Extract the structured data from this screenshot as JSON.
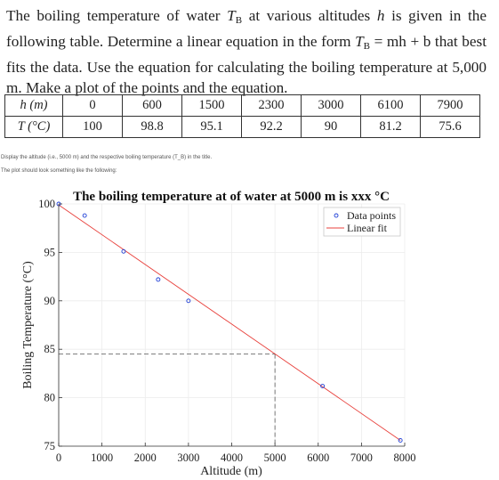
{
  "problem": {
    "text_part1": "The boiling temperature of water ",
    "symbol_T": "T",
    "subscript_B": "B",
    "text_part2": " at various altitudes ",
    "symbol_h": "h",
    "text_part3": " is given in the following table. Determine a linear equation in the form ",
    "equation_rhs": " = mh + b",
    "text_part4": " that best fits the data. Use the equation for calculating the boiling temperature at 5,000 m. Make a plot of the points and the equation."
  },
  "table": {
    "row_headers": [
      "h (m)",
      "T (°C)"
    ],
    "altitudes": [
      "0",
      "600",
      "1500",
      "2300",
      "3000",
      "6100",
      "7900"
    ],
    "temperatures": [
      "100",
      "98.8",
      "95.1",
      "92.2",
      "90",
      "81.2",
      "75.6"
    ]
  },
  "notes": {
    "note1": "Display the altitude (i.e., 5000 m) and the respective boiling temperature (T_B) in the title.",
    "note2": "The plot should look something like the following:"
  },
  "chart_data": {
    "type": "scatter",
    "title": "The boiling temperature at of water at 5000 m is xxx °C",
    "xlabel": "Altitude (m)",
    "ylabel": "Boiling Temperature (°C)",
    "xlim": [
      0,
      8000
    ],
    "ylim": [
      75,
      100
    ],
    "x_ticks": [
      0,
      1000,
      2000,
      3000,
      4000,
      5000,
      6000,
      7000,
      8000
    ],
    "y_ticks": [
      75,
      80,
      85,
      90,
      95,
      100
    ],
    "grid": true,
    "legend_position": "top-right",
    "series": [
      {
        "name": "Data points",
        "kind": "markers",
        "color": "#1f3fd6",
        "x": [
          0,
          600,
          1500,
          2300,
          3000,
          6100,
          7900
        ],
        "y": [
          100,
          98.8,
          95.1,
          92.2,
          90,
          81.2,
          75.6
        ]
      },
      {
        "name": "Linear fit",
        "kind": "line",
        "color": "#e8413c",
        "x": [
          0,
          7900
        ],
        "y": [
          99.9,
          75.6
        ]
      }
    ],
    "reference_lines": {
      "x": 5000,
      "y": 84.5,
      "color": "#555555"
    }
  }
}
